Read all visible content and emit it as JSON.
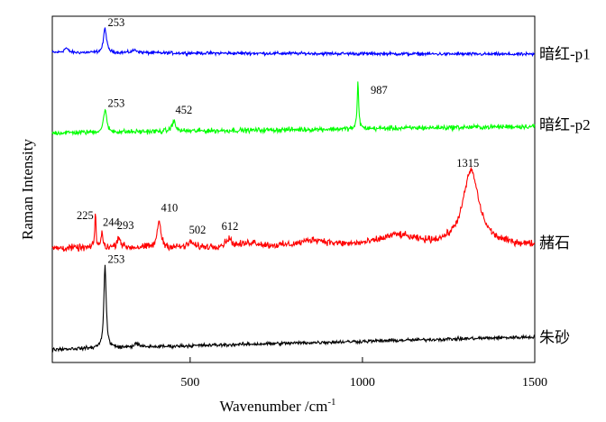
{
  "chart_data": {
    "type": "line",
    "title": "",
    "xlabel": "Wavenumber /cm",
    "xlabel_superscript": "-1",
    "ylabel": "Raman Intensity",
    "xlim": [
      100,
      1500
    ],
    "ylim": [
      0,
      100
    ],
    "x_ticks": [
      {
        "value": 500,
        "label": "500"
      },
      {
        "value": 1000,
        "label": "1000"
      },
      {
        "value": 1500,
        "label": "1500"
      }
    ],
    "grid": false,
    "series": [
      {
        "name": "暗红-p1",
        "color": "#0000ff",
        "baseline": 89.5,
        "trend": -0.5,
        "noise": 0.45,
        "peaks": [
          {
            "x": 253,
            "height": 7.2,
            "width": 5
          },
          {
            "x": 140,
            "height": 1.3,
            "width": 7
          },
          {
            "x": 340,
            "height": 0.8,
            "width": 10
          }
        ],
        "peak_labels": [
          {
            "x": 253,
            "label": "253"
          }
        ]
      },
      {
        "name": "暗红-p2",
        "color": "#00ff00",
        "baseline": 66.3,
        "trend": 1.9,
        "noise": 0.7,
        "peaks": [
          {
            "x": 253,
            "height": 6.8,
            "width": 5
          },
          {
            "x": 452,
            "height": 3.0,
            "width": 6
          },
          {
            "x": 987,
            "height": 13.8,
            "width": 2.5
          }
        ],
        "peak_labels": [
          {
            "x": 253,
            "label": "253"
          },
          {
            "x": 452,
            "label": "452"
          },
          {
            "x": 987,
            "label": "987"
          }
        ]
      },
      {
        "name": "赭石",
        "color": "#ff0000",
        "baseline": 33.0,
        "trend": 0.8,
        "noise": 1.0,
        "peaks": [
          {
            "x": 225,
            "height": 10.5,
            "width": 2
          },
          {
            "x": 244,
            "height": 4.0,
            "width": 3.5
          },
          {
            "x": 293,
            "height": 3.2,
            "width": 6
          },
          {
            "x": 410,
            "height": 7.8,
            "width": 6
          },
          {
            "x": 502,
            "height": 1.6,
            "width": 7
          },
          {
            "x": 612,
            "height": 2.3,
            "width": 10
          },
          {
            "x": 680,
            "height": 1.2,
            "width": 25
          },
          {
            "x": 860,
            "height": 1.8,
            "width": 45
          },
          {
            "x": 1100,
            "height": 3.0,
            "width": 60
          },
          {
            "x": 1315,
            "height": 21.5,
            "width": 28
          }
        ],
        "peak_labels": [
          {
            "x": 225,
            "label": "225"
          },
          {
            "x": 244,
            "label": "244"
          },
          {
            "x": 293,
            "label": "293"
          },
          {
            "x": 410,
            "label": "410"
          },
          {
            "x": 502,
            "label": "502"
          },
          {
            "x": 612,
            "label": "612"
          },
          {
            "x": 1315,
            "label": "1315"
          }
        ]
      },
      {
        "name": "朱砂",
        "color": "#000000",
        "baseline": 3.8,
        "trend": 3.6,
        "noise": 0.5,
        "peaks": [
          {
            "x": 253,
            "height": 24.0,
            "width": 4
          },
          {
            "x": 344,
            "height": 1.0,
            "width": 8
          }
        ],
        "peak_labels": [
          {
            "x": 253,
            "label": "253"
          }
        ]
      }
    ]
  }
}
